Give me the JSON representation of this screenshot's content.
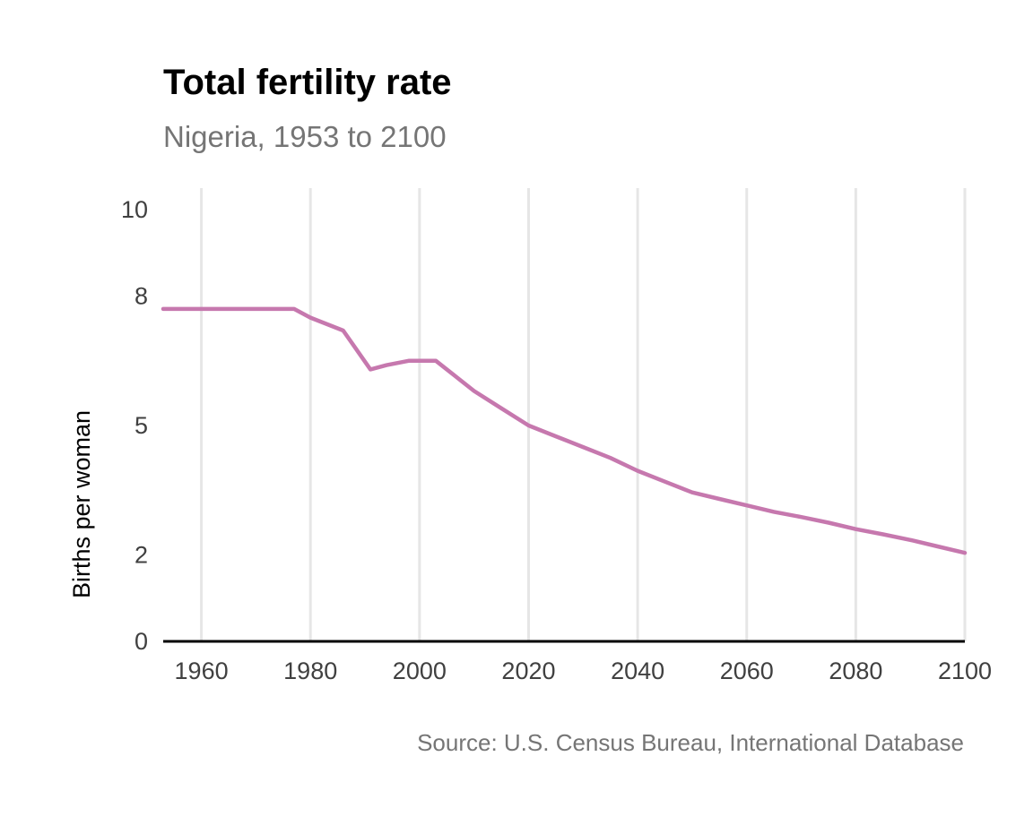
{
  "chart_data": {
    "type": "line",
    "title": "Total fertility rate",
    "subtitle": "Nigeria, 1953 to 2100",
    "ylabel": "Births per woman",
    "xlabel": "",
    "source": "Source: U.S. Census Bureau, International Database",
    "xlim": [
      1953,
      2100
    ],
    "ylim": [
      0,
      10.5
    ],
    "x_ticks": [
      1960,
      1980,
      2000,
      2020,
      2040,
      2060,
      2080,
      2100
    ],
    "y_ticks": [
      0,
      2,
      5,
      8,
      10
    ],
    "grid": "vertical",
    "legend": "none",
    "series": [
      {
        "color": "#c678ae",
        "x": [
          1953,
          1960,
          1970,
          1977,
          1980,
          1986,
          1991,
          1994,
          1998,
          2003,
          2010,
          2015,
          2020,
          2025,
          2030,
          2035,
          2040,
          2045,
          2050,
          2055,
          2060,
          2065,
          2070,
          2075,
          2080,
          2085,
          2090,
          2095,
          2100
        ],
        "y": [
          7.7,
          7.7,
          7.7,
          7.7,
          7.5,
          7.2,
          6.3,
          6.4,
          6.5,
          6.5,
          5.8,
          5.4,
          5.0,
          4.75,
          4.5,
          4.25,
          3.95,
          3.7,
          3.45,
          3.3,
          3.15,
          3.0,
          2.88,
          2.75,
          2.6,
          2.48,
          2.35,
          2.2,
          2.05
        ]
      }
    ]
  }
}
